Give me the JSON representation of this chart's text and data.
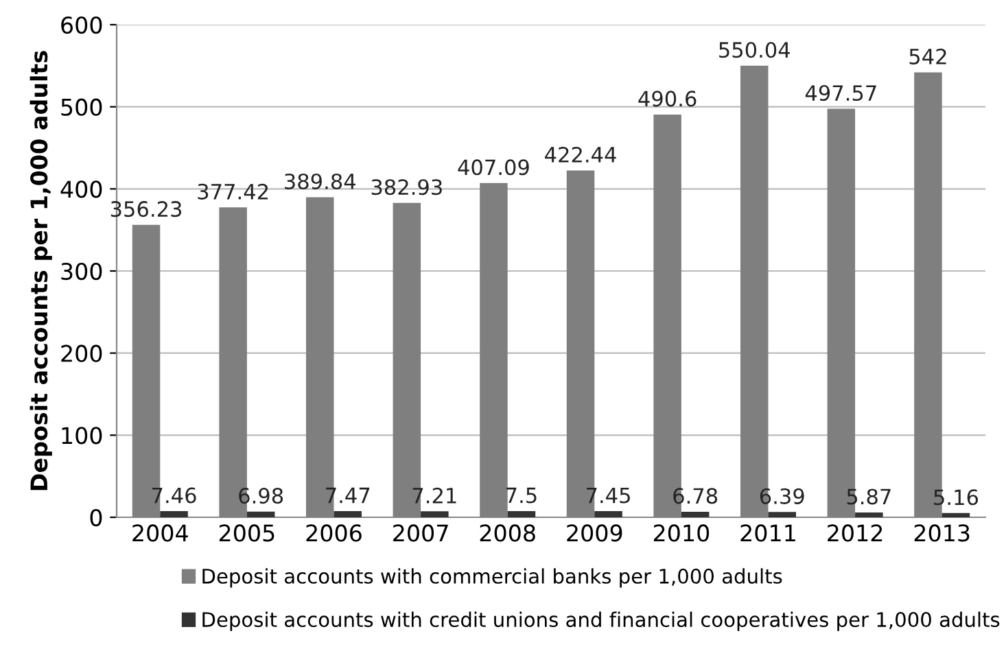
{
  "chart_data": {
    "type": "bar",
    "ylabel": "Deposit accounts per 1,000 adults",
    "categories": [
      "2004",
      "2005",
      "2006",
      "2007",
      "2008",
      "2009",
      "2010",
      "2011",
      "2012",
      "2013"
    ],
    "series": [
      {
        "name": "Deposit accounts with commercial banks per 1,000 adults",
        "color": "#7f7f7f",
        "values": [
          356.23,
          377.42,
          389.84,
          382.93,
          407.09,
          422.44,
          490.6,
          550.04,
          497.57,
          542
        ]
      },
      {
        "name": "Deposit accounts with credit unions and financial cooperatives per 1,000 adults",
        "color": "#333333",
        "values": [
          7.46,
          6.98,
          7.47,
          7.21,
          7.5,
          7.45,
          6.78,
          6.39,
          5.87,
          5.16
        ]
      }
    ],
    "ylim": [
      0,
      600
    ],
    "yticks": [
      0,
      100,
      200,
      300,
      400,
      500,
      600
    ],
    "grid": "y",
    "legend": "bottom",
    "data_labels": true
  }
}
